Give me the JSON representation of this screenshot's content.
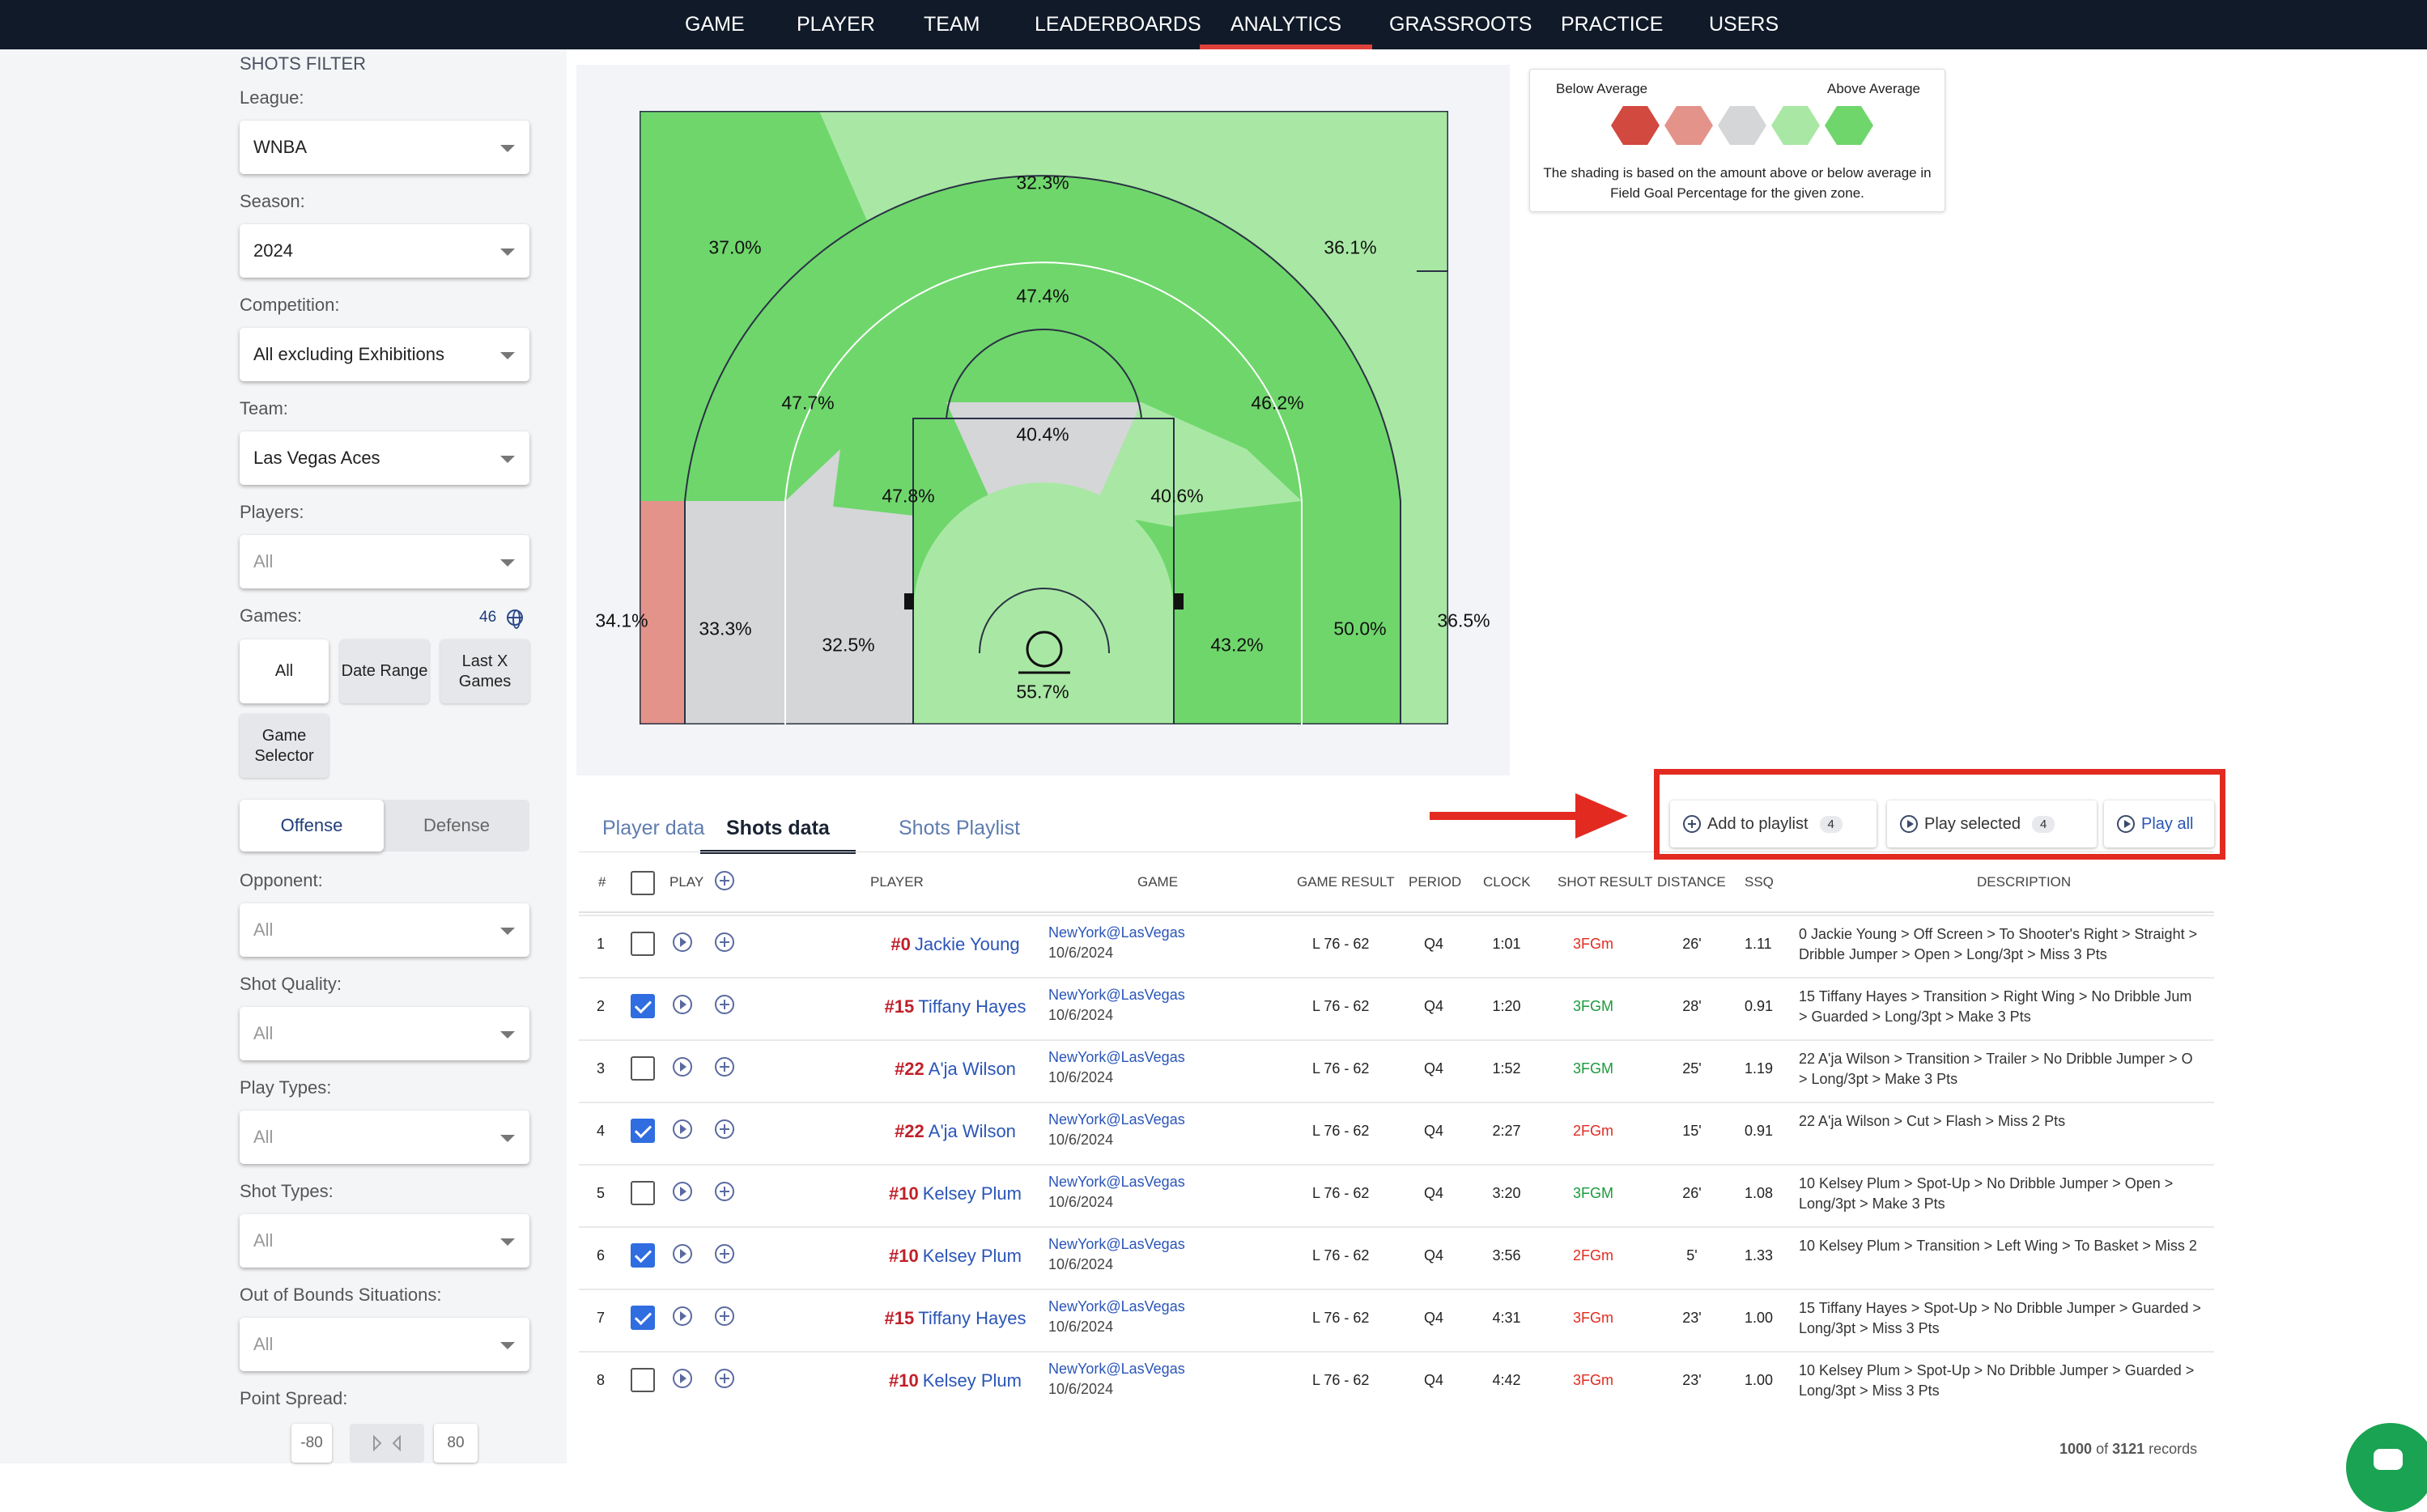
{
  "nav": {
    "items": [
      "GAME",
      "PLAYER",
      "TEAM",
      "LEADERBOARDS",
      "ANALYTICS",
      "GRASSROOTS",
      "PRACTICE",
      "USERS"
    ],
    "active": "ANALYTICS"
  },
  "sidebar": {
    "title": "SHOTS FILTER",
    "league": {
      "label": "League:",
      "value": "WNBA"
    },
    "season": {
      "label": "Season:",
      "value": "2024"
    },
    "competition": {
      "label": "Competition:",
      "value": "All excluding Exhibitions"
    },
    "team": {
      "label": "Team:",
      "value": "Las Vegas Aces"
    },
    "players": {
      "label": "Players:",
      "value": "All"
    },
    "games": {
      "label": "Games:",
      "count": "46",
      "buttons": [
        "All",
        "Date Range",
        "Last X Games",
        "Game Selector"
      ],
      "selected": "All"
    },
    "side_toggle": {
      "offense": "Offense",
      "defense": "Defense",
      "selected": "Offense"
    },
    "opponent": {
      "label": "Opponent:",
      "value": "All"
    },
    "shot_quality": {
      "label": "Shot Quality:",
      "value": "All"
    },
    "play_types": {
      "label": "Play Types:",
      "value": "All"
    },
    "shot_types": {
      "label": "Shot Types:",
      "value": "All"
    },
    "oob": {
      "label": "Out of Bounds Situations:",
      "value": "All"
    },
    "point_spread": {
      "label": "Point Spread:",
      "min": "-80",
      "max": "80"
    }
  },
  "court": {
    "zones": {
      "corner3_left": "34.1%",
      "wing3_left": "37.0%",
      "top3": "32.3%",
      "wing3_right": "36.1%",
      "corner3_right": "36.5%",
      "base2_left": "33.3%",
      "elbow2_left": "47.7%",
      "top2": "47.4%",
      "elbow2_right": "46.2%",
      "base2_right": "50.0%",
      "short_left": "32.5%",
      "paint_left": "47.8%",
      "ft": "40.4%",
      "paint_right": "40.6%",
      "short_right": "43.2%",
      "rim": "55.7%"
    }
  },
  "legend": {
    "below": "Below Average",
    "above": "Above Average",
    "note": "The shading is based on the amount above or below average in Field Goal Percentage for the given zone.",
    "colors": [
      "#d1493f",
      "#e3938a",
      "#d5d6d8",
      "#a9e8a4",
      "#6fd66c"
    ]
  },
  "tabs": [
    "Player data",
    "Shots data",
    "Shots Playlist"
  ],
  "active_tab": "Shots data",
  "actions": {
    "add_to_playlist": "Add to playlist",
    "add_count": "4",
    "play_selected": "Play selected",
    "selected_count": "4",
    "play_all": "Play all"
  },
  "table": {
    "headers": {
      "num": "#",
      "play": "PLAY",
      "player": "PLAYER",
      "game": "GAME",
      "game_result": "GAME RESULT",
      "period": "PERIOD",
      "clock": "CLOCK",
      "shot_result": "SHOT RESULT",
      "distance": "DISTANCE",
      "ssq": "SSQ",
      "description": "DESCRIPTION"
    },
    "rows": [
      {
        "n": "1",
        "checked": false,
        "pnum": "#0",
        "name": "Jackie Young",
        "game": "NewYork@LasVegas",
        "date": "10/6/2024",
        "result": "L 76 - 62",
        "period": "Q4",
        "clock": "1:01",
        "shot": "3FGm",
        "dist": "26'",
        "ssq": "1.11",
        "d1": "0 Jackie Young > Off Screen > To Shooter's Right > Straight >",
        "d2": "Dribble Jumper > Open > Long/3pt > Miss 3 Pts"
      },
      {
        "n": "2",
        "checked": true,
        "pnum": "#15",
        "name": "Tiffany Hayes",
        "game": "NewYork@LasVegas",
        "date": "10/6/2024",
        "result": "L 76 - 62",
        "period": "Q4",
        "clock": "1:20",
        "shot": "3FGM",
        "dist": "28'",
        "ssq": "0.91",
        "d1": "15 Tiffany Hayes > Transition > Right Wing > No Dribble Jum",
        "d2": "> Guarded > Long/3pt > Make 3 Pts"
      },
      {
        "n": "3",
        "checked": false,
        "pnum": "#22",
        "name": "A'ja Wilson",
        "game": "NewYork@LasVegas",
        "date": "10/6/2024",
        "result": "L 76 - 62",
        "period": "Q4",
        "clock": "1:52",
        "shot": "3FGM",
        "dist": "25'",
        "ssq": "1.19",
        "d1": "22 A'ja Wilson > Transition > Trailer > No Dribble Jumper > O",
        "d2": "> Long/3pt > Make 3 Pts"
      },
      {
        "n": "4",
        "checked": true,
        "pnum": "#22",
        "name": "A'ja Wilson",
        "game": "NewYork@LasVegas",
        "date": "10/6/2024",
        "result": "L 76 - 62",
        "period": "Q4",
        "clock": "2:27",
        "shot": "2FGm",
        "dist": "15'",
        "ssq": "0.91",
        "d1": "22 A'ja Wilson > Cut > Flash > Miss 2 Pts",
        "d2": ""
      },
      {
        "n": "5",
        "checked": false,
        "pnum": "#10",
        "name": "Kelsey Plum",
        "game": "NewYork@LasVegas",
        "date": "10/6/2024",
        "result": "L 76 - 62",
        "period": "Q4",
        "clock": "3:20",
        "shot": "3FGM",
        "dist": "26'",
        "ssq": "1.08",
        "d1": "10 Kelsey Plum > Spot-Up > No Dribble Jumper > Open >",
        "d2": "Long/3pt > Make 3 Pts"
      },
      {
        "n": "6",
        "checked": true,
        "pnum": "#10",
        "name": "Kelsey Plum",
        "game": "NewYork@LasVegas",
        "date": "10/6/2024",
        "result": "L 76 - 62",
        "period": "Q4",
        "clock": "3:56",
        "shot": "2FGm",
        "dist": "5'",
        "ssq": "1.33",
        "d1": "10 Kelsey Plum > Transition > Left Wing > To Basket > Miss 2",
        "d2": ""
      },
      {
        "n": "7",
        "checked": true,
        "pnum": "#15",
        "name": "Tiffany Hayes",
        "game": "NewYork@LasVegas",
        "date": "10/6/2024",
        "result": "L 76 - 62",
        "period": "Q4",
        "clock": "4:31",
        "shot": "3FGm",
        "dist": "23'",
        "ssq": "1.00",
        "d1": "15 Tiffany Hayes > Spot-Up > No Dribble Jumper > Guarded >",
        "d2": "Long/3pt > Miss 3 Pts"
      },
      {
        "n": "8",
        "checked": false,
        "pnum": "#10",
        "name": "Kelsey Plum",
        "game": "NewYork@LasVegas",
        "date": "10/6/2024",
        "result": "L 76 - 62",
        "period": "Q4",
        "clock": "4:42",
        "shot": "3FGm",
        "dist": "23'",
        "ssq": "1.00",
        "d1": "10 Kelsey Plum > Spot-Up > No Dribble Jumper > Guarded >",
        "d2": "Long/3pt > Miss 3 Pts"
      }
    ]
  },
  "footer": {
    "shown": "1000",
    "of": "of",
    "total": "3121",
    "records": "records"
  },
  "colors": {
    "nav_bg": "#101a28",
    "accent": "#e0403a",
    "make": "#1a9a3c",
    "miss": "#e02b20",
    "highlight_box": "#e32a21"
  }
}
